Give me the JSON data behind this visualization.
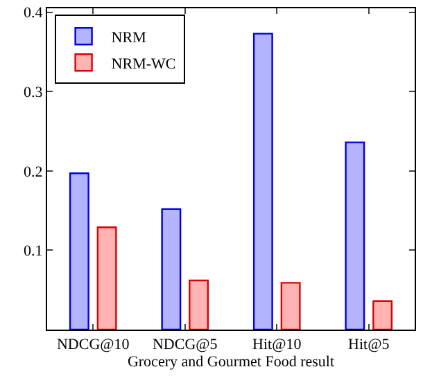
{
  "chart_data": {
    "type": "bar",
    "xlabel": "Grocery and Gourmet Food result",
    "categories": [
      "NDCG@10",
      "NDCG@5",
      "Hit@10",
      "Hit@5"
    ],
    "series": [
      {
        "name": "NRM",
        "color": "#b3b3ff",
        "values": [
          0.197,
          0.152,
          0.373,
          0.236
        ]
      },
      {
        "name": "NRM-WC",
        "color": "#ffb3b3",
        "values": [
          0.129,
          0.062,
          0.059,
          0.036
        ]
      }
    ],
    "ylim": [
      0,
      0.405
    ],
    "yticks": [
      0.1,
      0.2,
      0.3,
      0.4
    ],
    "legend": "top left"
  }
}
